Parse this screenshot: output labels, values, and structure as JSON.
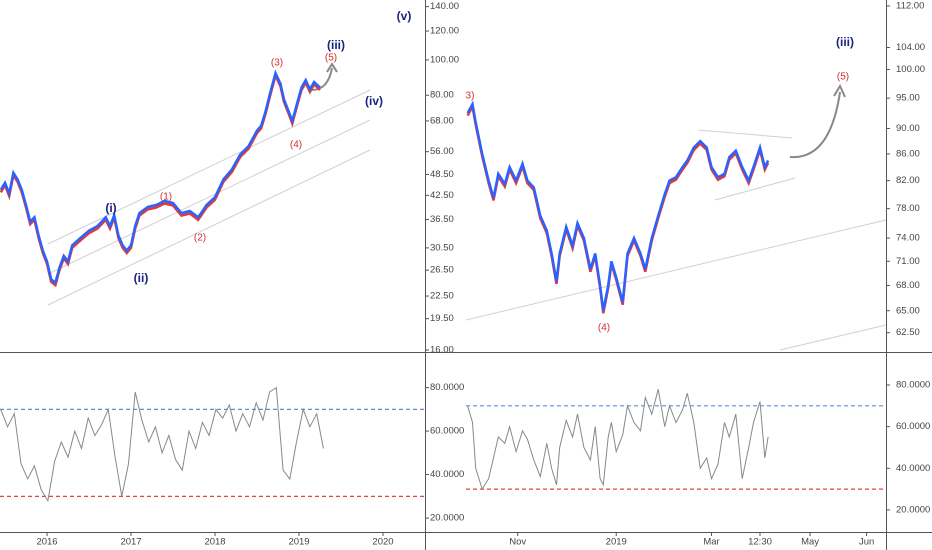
{
  "chart_data": [
    {
      "type": "line",
      "log_scale": true,
      "color": "#2962ff",
      "shadow_color": "#e53935",
      "xlim": [
        2015.44,
        2020.5
      ],
      "xticks": [
        2016,
        2017,
        2018,
        2019,
        2020
      ],
      "ylim": [
        16,
        146
      ],
      "yticks": [
        {
          "value": 140,
          "label": "140.00"
        },
        {
          "value": 120,
          "label": "120.00"
        },
        {
          "value": 100,
          "label": "100.00"
        },
        {
          "value": 80,
          "label": "80.00"
        },
        {
          "value": 68,
          "label": "68.00"
        },
        {
          "value": 56,
          "label": "56.00"
        },
        {
          "value": 48.5,
          "label": "48.50"
        },
        {
          "value": 42.5,
          "label": "42.50"
        },
        {
          "value": 36.5,
          "label": "36.50"
        },
        {
          "value": 30.5,
          "label": "30.50"
        },
        {
          "value": 26.5,
          "label": "26.50"
        },
        {
          "value": 22.5,
          "label": "22.50"
        },
        {
          "value": 19.5,
          "label": "19.50"
        },
        {
          "value": 16,
          "label": "16.00"
        }
      ],
      "x": [
        2015.45,
        2015.5,
        2015.55,
        2015.6,
        2015.65,
        2015.7,
        2015.75,
        2015.8,
        2015.85,
        2015.9,
        2015.95,
        2016.0,
        2016.05,
        2016.1,
        2016.15,
        2016.2,
        2016.25,
        2016.3,
        2016.4,
        2016.5,
        2016.6,
        2016.7,
        2016.75,
        2016.8,
        2016.85,
        2016.9,
        2016.95,
        2017.0,
        2017.05,
        2017.1,
        2017.2,
        2017.3,
        2017.4,
        2017.5,
        2017.6,
        2017.7,
        2017.8,
        2017.9,
        2018.0,
        2018.1,
        2018.2,
        2018.3,
        2018.4,
        2018.5,
        2018.55,
        2018.6,
        2018.65,
        2018.72,
        2018.78,
        2018.82,
        2018.88,
        2018.92,
        2018.97,
        2019.03,
        2019.08,
        2019.13,
        2019.18,
        2019.25
      ],
      "values": [
        44,
        46,
        43,
        49,
        47,
        44,
        40,
        36,
        37,
        33,
        30,
        28,
        25,
        24.5,
        27,
        29,
        28,
        31,
        32.5,
        34,
        35,
        37,
        35,
        37.5,
        33,
        31,
        30,
        31,
        35,
        38,
        39.5,
        40,
        41,
        40.5,
        38,
        38.5,
        37,
        40,
        42,
        47,
        50,
        55,
        58,
        64,
        66,
        72,
        80,
        92,
        86,
        78,
        72,
        68,
        75,
        84,
        88,
        83,
        87,
        84
      ],
      "annotations": [
        {
          "text": "(v)",
          "color": "#1a237e"
        },
        {
          "text": "(iii)",
          "color": "#1a237e"
        },
        {
          "text": "(5)",
          "color": "#d32f2f"
        },
        {
          "text": "(3)",
          "color": "#d32f2f"
        },
        {
          "text": "(iv)",
          "color": "#1a237e"
        },
        {
          "text": "(4)",
          "color": "#d32f2f"
        },
        {
          "text": "(1)",
          "color": "#d32f2f"
        },
        {
          "text": "(2)",
          "color": "#d32f2f"
        },
        {
          "text": "(i)",
          "color": "#1a237e"
        },
        {
          "text": "(ii)",
          "color": "#1a237e"
        }
      ]
    },
    {
      "type": "line",
      "color": "#888888",
      "xlim": [
        2015.44,
        2020.5
      ],
      "ylim": [
        13.6,
        95
      ],
      "yticks": [
        {
          "value": 80,
          "label": "80.0000"
        },
        {
          "value": 60,
          "label": "60.0000"
        },
        {
          "value": 40,
          "label": "40.0000"
        },
        {
          "value": 20,
          "label": "20.0000"
        }
      ],
      "levels": [
        {
          "value": 70,
          "color": "#5b8fd6"
        },
        {
          "value": 30,
          "color": "#e0443c"
        }
      ],
      "x": [
        2015.45,
        2015.53,
        2015.61,
        2015.69,
        2015.77,
        2015.85,
        2015.93,
        2016.01,
        2016.09,
        2016.17,
        2016.25,
        2016.33,
        2016.41,
        2016.49,
        2016.57,
        2016.65,
        2016.73,
        2016.81,
        2016.89,
        2016.97,
        2017.05,
        2017.13,
        2017.21,
        2017.29,
        2017.37,
        2017.45,
        2017.53,
        2017.61,
        2017.69,
        2017.77,
        2017.85,
        2017.93,
        2018.01,
        2018.09,
        2018.17,
        2018.25,
        2018.33,
        2018.41,
        2018.49,
        2018.57,
        2018.65,
        2018.73,
        2018.81,
        2018.89,
        2018.97,
        2019.05,
        2019.13,
        2019.21,
        2019.29
      ],
      "values": [
        70,
        62,
        68,
        45,
        38,
        44,
        33,
        28,
        46,
        55,
        48,
        60,
        52,
        66,
        58,
        63,
        70,
        48,
        30,
        45,
        78,
        65,
        55,
        62,
        50,
        58,
        47,
        42,
        60,
        52,
        64,
        58,
        70,
        66,
        72,
        60,
        68,
        62,
        73,
        65,
        78,
        80,
        42,
        38,
        55,
        70,
        62,
        68,
        52
      ]
    },
    {
      "type": "line",
      "log_scale": true,
      "color": "#2962ff",
      "shadow_color": "#e53935",
      "xlim": [
        8,
        268
      ],
      "xticks": [
        {
          "value": 40,
          "label": "Nov"
        },
        {
          "value": 101,
          "label": "2019"
        },
        {
          "value": 160,
          "label": "Mar"
        },
        {
          "value": 190,
          "label": "12:30"
        },
        {
          "value": 221,
          "label": "May"
        },
        {
          "value": 256,
          "label": "Jun"
        }
      ],
      "ylim": [
        60.6,
        113.2
      ],
      "yticks": [
        {
          "value": 112,
          "label": "112.00"
        },
        {
          "value": 104,
          "label": "104.00"
        },
        {
          "value": 100,
          "label": "100.00"
        },
        {
          "value": 95,
          "label": "95.00"
        },
        {
          "value": 90,
          "label": "90.00"
        },
        {
          "value": 86,
          "label": "86.00"
        },
        {
          "value": 82,
          "label": "82.00"
        },
        {
          "value": 78,
          "label": "78.00"
        },
        {
          "value": 74,
          "label": "74.00"
        },
        {
          "value": 71,
          "label": "71.00"
        },
        {
          "value": 68,
          "label": "68.00"
        },
        {
          "value": 65,
          "label": "65.00"
        },
        {
          "value": 62.5,
          "label": "62.50"
        }
      ],
      "x": [
        9,
        12,
        14,
        18,
        22,
        25,
        28,
        32,
        35,
        39,
        43,
        46,
        50,
        54,
        58,
        61,
        64,
        66,
        70,
        74,
        77,
        81,
        85,
        88,
        91,
        93,
        96,
        98,
        101,
        105,
        108,
        112,
        116,
        119,
        123,
        127,
        131,
        134,
        138,
        142,
        145,
        149,
        153,
        157,
        160,
        164,
        168,
        171,
        175,
        179,
        183,
        186,
        190,
        193,
        195
      ],
      "values": [
        92.5,
        94,
        91,
        86,
        82,
        79.5,
        83,
        81.5,
        84,
        82,
        84.5,
        82,
        81,
        77,
        75,
        72,
        68.5,
        72,
        75.5,
        73,
        76,
        74,
        70,
        72,
        68,
        65,
        68,
        71,
        69,
        66,
        72,
        74,
        72,
        70,
        74,
        77,
        80,
        82,
        82.5,
        84,
        85,
        87,
        88,
        87,
        84,
        82.5,
        83,
        85.5,
        86.5,
        84,
        82,
        84,
        87,
        84,
        85
      ],
      "annotations": [
        {
          "text": "3)",
          "color": "#d32f2f"
        },
        {
          "text": "(iii)",
          "color": "#1a237e"
        },
        {
          "text": "(5)",
          "color": "#d32f2f"
        },
        {
          "text": "(4)",
          "color": "#d32f2f"
        }
      ]
    },
    {
      "type": "line",
      "color": "#888888",
      "xlim": [
        8,
        268
      ],
      "ylim": [
        9.4,
        94.4
      ],
      "yticks": [
        {
          "value": 80,
          "label": "80.0000"
        },
        {
          "value": 60,
          "label": "60.0000"
        },
        {
          "value": 40,
          "label": "40.0000"
        },
        {
          "value": 20,
          "label": "20.0000"
        }
      ],
      "levels": [
        {
          "value": 70,
          "color": "#5b8fd6"
        },
        {
          "value": 30,
          "color": "#e0443c"
        }
      ],
      "x": [
        9,
        12,
        14,
        18,
        22,
        25,
        28,
        32,
        35,
        39,
        43,
        46,
        50,
        54,
        58,
        61,
        64,
        66,
        70,
        74,
        77,
        81,
        85,
        88,
        91,
        93,
        96,
        98,
        101,
        105,
        108,
        112,
        116,
        119,
        123,
        127,
        131,
        134,
        138,
        142,
        145,
        149,
        153,
        157,
        160,
        164,
        168,
        171,
        175,
        179,
        183,
        186,
        190,
        193,
        195
      ],
      "values": [
        70,
        62,
        40,
        30,
        35,
        45,
        55,
        52,
        60,
        48,
        58,
        54,
        44,
        36,
        52,
        40,
        32,
        50,
        63,
        55,
        66,
        50,
        44,
        60,
        35,
        32,
        55,
        62,
        48,
        56,
        70,
        62,
        58,
        74,
        66,
        78,
        60,
        70,
        62,
        68,
        76,
        62,
        40,
        45,
        35,
        42,
        62,
        55,
        66,
        35,
        50,
        62,
        72,
        45,
        55
      ]
    }
  ]
}
